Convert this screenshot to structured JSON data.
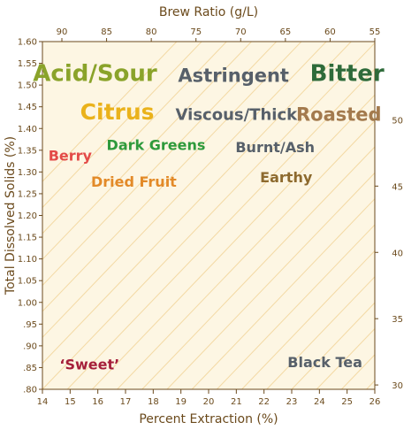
{
  "chart_data": {
    "type": "scatter",
    "title": "",
    "xlabel": "Percent Extraction (%)",
    "ylabel": "Total Dissolved Solids (%)",
    "top_axis_label": "Brew Ratio (g/L)",
    "xlim": [
      14,
      26
    ],
    "ylim": [
      0.8,
      1.6
    ],
    "x_ticks": [
      "14",
      "15",
      "16",
      "17",
      "18",
      "19",
      "20",
      "21",
      "22",
      "23",
      "24",
      "25",
      "26"
    ],
    "y_ticks": [
      ".80",
      ".85",
      ".90",
      ".95",
      "1.00",
      "1.05",
      "1.10",
      "1.15",
      "1.20",
      "1.25",
      "1.30",
      "1.35",
      "1.40",
      "1.45",
      "1.50",
      "1.55",
      "1.60"
    ],
    "brew_ratio_ticks_top": [
      "90",
      "85",
      "80",
      "75",
      "70",
      "65",
      "60",
      "55"
    ],
    "brew_ratio_ticks_right": [
      "30",
      "35",
      "40",
      "45",
      "50"
    ],
    "grid": false,
    "background_color": "#fdf6e3",
    "diagonal_line_color": "#f3d9a4",
    "axis_color": "#6b4a1c",
    "flavor_labels": [
      {
        "text": "Acid/Sour",
        "x": 15.9,
        "y": 1.525,
        "color": "#8aa32a",
        "size": 26
      },
      {
        "text": "Astringent",
        "x": 20.9,
        "y": 1.52,
        "color": "#57606a",
        "size": 21
      },
      {
        "text": "Bitter",
        "x": 25.0,
        "y": 1.525,
        "color": "#2e6b3a",
        "size": 26
      },
      {
        "text": "Citrus",
        "x": 16.7,
        "y": 1.435,
        "color": "#eab21b",
        "size": 25
      },
      {
        "text": "Viscous/Thick",
        "x": 21.0,
        "y": 1.43,
        "color": "#57606a",
        "size": 18
      },
      {
        "text": "Roasted",
        "x": 24.7,
        "y": 1.43,
        "color": "#a37a4d",
        "size": 21
      },
      {
        "text": "Berry",
        "x": 15.0,
        "y": 1.335,
        "color": "#e34b48",
        "size": 16
      },
      {
        "text": "Dark Greens",
        "x": 18.1,
        "y": 1.36,
        "color": "#2e9a3c",
        "size": 16
      },
      {
        "text": "Burnt/Ash",
        "x": 22.4,
        "y": 1.355,
        "color": "#57606a",
        "size": 16
      },
      {
        "text": "Dried Fruit",
        "x": 17.3,
        "y": 1.275,
        "color": "#e38a28",
        "size": 16
      },
      {
        "text": "Earthy",
        "x": 22.8,
        "y": 1.285,
        "color": "#8d6a2e",
        "size": 16
      },
      {
        "text": "‘Sweet’",
        "x": 15.7,
        "y": 0.855,
        "color": "#a51f3a",
        "size": 16
      },
      {
        "text": "Black Tea",
        "x": 24.2,
        "y": 0.86,
        "color": "#57606a",
        "size": 16
      }
    ]
  }
}
